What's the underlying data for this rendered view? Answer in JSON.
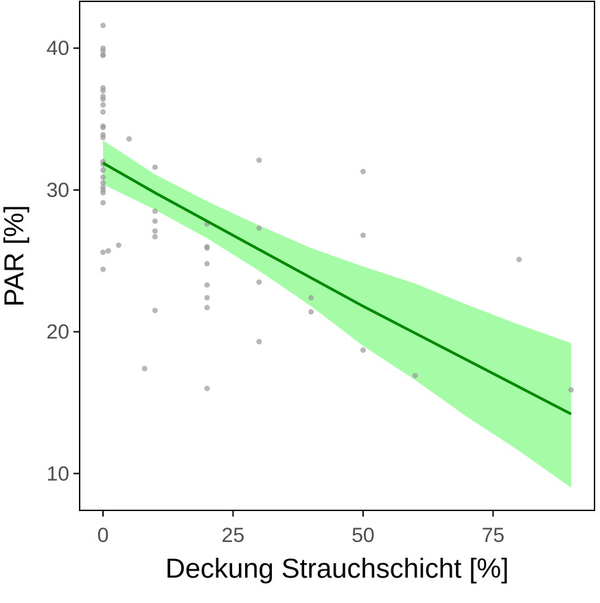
{
  "chart_data": {
    "type": "scatter",
    "title": "",
    "xlabel": "Deckung Strauchschicht [%]",
    "ylabel": "PAR [%]",
    "xlim": [
      -4.5,
      94.5
    ],
    "ylim": [
      7.4,
      43.3
    ],
    "x_ticks": [
      "0",
      "25",
      "50",
      "75"
    ],
    "y_ticks": [
      "10",
      "20",
      "30",
      "40"
    ],
    "grid": false,
    "points": [
      {
        "x": 0,
        "y": 41.6
      },
      {
        "x": 0,
        "y": 40.0
      },
      {
        "x": 0,
        "y": 39.8
      },
      {
        "x": 0,
        "y": 39.5
      },
      {
        "x": 0,
        "y": 39.5
      },
      {
        "x": 0,
        "y": 37.2
      },
      {
        "x": 0,
        "y": 37.0
      },
      {
        "x": 0,
        "y": 36.6
      },
      {
        "x": 0,
        "y": 36.4
      },
      {
        "x": 0,
        "y": 36.0
      },
      {
        "x": 0,
        "y": 35.5
      },
      {
        "x": 0,
        "y": 34.5
      },
      {
        "x": 0,
        "y": 34.4
      },
      {
        "x": 0,
        "y": 33.9
      },
      {
        "x": 0,
        "y": 33.7
      },
      {
        "x": 0,
        "y": 32.0
      },
      {
        "x": 0,
        "y": 31.8
      },
      {
        "x": 0,
        "y": 31.4
      },
      {
        "x": 0,
        "y": 30.9
      },
      {
        "x": 0,
        "y": 30.5
      },
      {
        "x": 0,
        "y": 30.2
      },
      {
        "x": 0,
        "y": 30.0
      },
      {
        "x": 0,
        "y": 29.8
      },
      {
        "x": 0,
        "y": 29.1
      },
      {
        "x": 0,
        "y": 25.6
      },
      {
        "x": 0,
        "y": 24.4
      },
      {
        "x": 1,
        "y": 25.7
      },
      {
        "x": 3,
        "y": 26.1
      },
      {
        "x": 5,
        "y": 33.6
      },
      {
        "x": 8,
        "y": 17.4
      },
      {
        "x": 10,
        "y": 31.6
      },
      {
        "x": 10,
        "y": 28.5
      },
      {
        "x": 10,
        "y": 27.8
      },
      {
        "x": 10,
        "y": 27.1
      },
      {
        "x": 10,
        "y": 26.7
      },
      {
        "x": 10,
        "y": 21.5
      },
      {
        "x": 20,
        "y": 27.6
      },
      {
        "x": 20,
        "y": 26.0
      },
      {
        "x": 20,
        "y": 25.9
      },
      {
        "x": 20,
        "y": 24.8
      },
      {
        "x": 20,
        "y": 23.3
      },
      {
        "x": 20,
        "y": 22.4
      },
      {
        "x": 20,
        "y": 21.7
      },
      {
        "x": 20,
        "y": 16.0
      },
      {
        "x": 30,
        "y": 32.1
      },
      {
        "x": 30,
        "y": 27.3
      },
      {
        "x": 30,
        "y": 23.5
      },
      {
        "x": 30,
        "y": 19.3
      },
      {
        "x": 40,
        "y": 22.4
      },
      {
        "x": 40,
        "y": 21.4
      },
      {
        "x": 50,
        "y": 31.3
      },
      {
        "x": 50,
        "y": 26.8
      },
      {
        "x": 50,
        "y": 18.7
      },
      {
        "x": 60,
        "y": 16.9
      },
      {
        "x": 80,
        "y": 25.1
      },
      {
        "x": 90,
        "y": 15.9
      }
    ],
    "fit_line": [
      {
        "x": 0,
        "y": 31.9
      },
      {
        "x": 10,
        "y": 29.8
      },
      {
        "x": 20,
        "y": 27.8
      },
      {
        "x": 30,
        "y": 25.8
      },
      {
        "x": 40,
        "y": 23.8
      },
      {
        "x": 50,
        "y": 21.8
      },
      {
        "x": 60,
        "y": 19.9
      },
      {
        "x": 70,
        "y": 18.0
      },
      {
        "x": 80,
        "y": 16.1
      },
      {
        "x": 90,
        "y": 14.2
      }
    ],
    "confidence_band": [
      {
        "x": 0,
        "lower": 30.4,
        "upper": 33.5
      },
      {
        "x": 10,
        "lower": 28.6,
        "upper": 31.1
      },
      {
        "x": 20,
        "lower": 26.6,
        "upper": 29.2
      },
      {
        "x": 30,
        "lower": 24.3,
        "upper": 27.5
      },
      {
        "x": 40,
        "lower": 21.8,
        "upper": 25.9
      },
      {
        "x": 50,
        "lower": 19.0,
        "upper": 24.6
      },
      {
        "x": 60,
        "lower": 16.6,
        "upper": 23.4
      },
      {
        "x": 70,
        "lower": 14.0,
        "upper": 21.9
      },
      {
        "x": 80,
        "lower": 11.6,
        "upper": 20.5
      },
      {
        "x": 90,
        "lower": 9.0,
        "upper": 19.2
      }
    ],
    "colors": {
      "points": "#999999",
      "fit_line": "#008800",
      "band": "#a6fca6",
      "axis": "#000000",
      "tick_label": "#4d4d4d"
    }
  }
}
